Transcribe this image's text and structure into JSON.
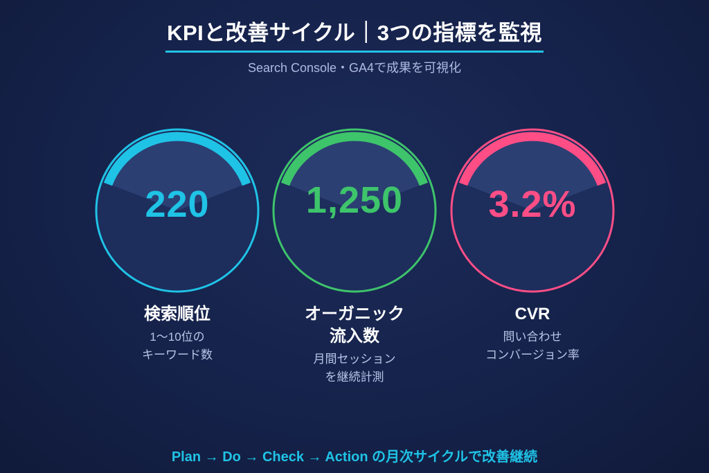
{
  "header": {
    "title": "KPIと改善サイクル｜3つの指標を監視",
    "subtitle": "Search Console・GA4で成果を可視化",
    "accent_color": "#22c3e6"
  },
  "kpis": [
    {
      "value": "220",
      "label": "検索順位",
      "desc_line1": "1〜10位の",
      "desc_line2": "キーワード数",
      "color": "#1fc3e6",
      "arc_fraction": 0.22
    },
    {
      "value": "1,250",
      "label_line1": "オーガニック",
      "label_line2": "流入数",
      "desc_line1": "月間セッション",
      "desc_line2": "を継続計測",
      "color": "#3ec46b",
      "arc_fraction": 0.27
    },
    {
      "value": "3.2%",
      "label": "CVR",
      "desc_line1": "問い合わせ",
      "desc_line2": "コンバージョン率",
      "color": "#ff4e86",
      "arc_fraction": 0.27
    }
  ],
  "footer": {
    "text": "Plan → Do → Check → Action の月次サイクルで改善継続"
  }
}
